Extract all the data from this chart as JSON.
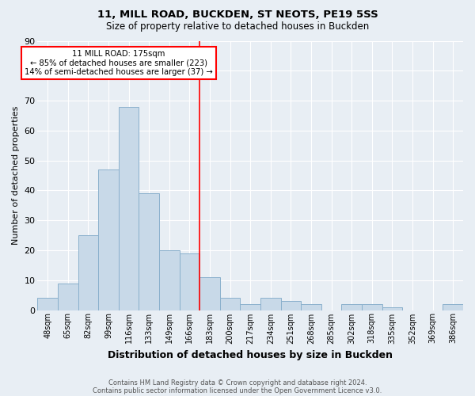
{
  "title1": "11, MILL ROAD, BUCKDEN, ST NEOTS, PE19 5SS",
  "title2": "Size of property relative to detached houses in Buckden",
  "xlabel": "Distribution of detached houses by size in Buckden",
  "ylabel": "Number of detached properties",
  "footnote1": "Contains HM Land Registry data © Crown copyright and database right 2024.",
  "footnote2": "Contains public sector information licensed under the Open Government Licence v3.0.",
  "categories": [
    "48sqm",
    "65sqm",
    "82sqm",
    "99sqm",
    "116sqm",
    "133sqm",
    "149sqm",
    "166sqm",
    "183sqm",
    "200sqm",
    "217sqm",
    "234sqm",
    "251sqm",
    "268sqm",
    "285sqm",
    "302sqm",
    "318sqm",
    "335sqm",
    "352sqm",
    "369sqm",
    "386sqm"
  ],
  "values": [
    4,
    9,
    25,
    47,
    68,
    39,
    20,
    19,
    11,
    4,
    2,
    4,
    3,
    2,
    0,
    2,
    2,
    1,
    0,
    0,
    2
  ],
  "bar_color": "#c8d9e8",
  "bar_edge_color": "#8ab0cc",
  "background_color": "#e8eef4",
  "grid_color": "#ffffff",
  "vline_x": 7.5,
  "vline_color": "red",
  "annotation_title": "11 MILL ROAD: 175sqm",
  "annotation_line1": "← 85% of detached houses are smaller (223)",
  "annotation_line2": "14% of semi-detached houses are larger (37) →",
  "annotation_box_color": "white",
  "annotation_box_edge": "red",
  "ylim": [
    0,
    90
  ],
  "yticks": [
    0,
    10,
    20,
    30,
    40,
    50,
    60,
    70,
    80,
    90
  ]
}
